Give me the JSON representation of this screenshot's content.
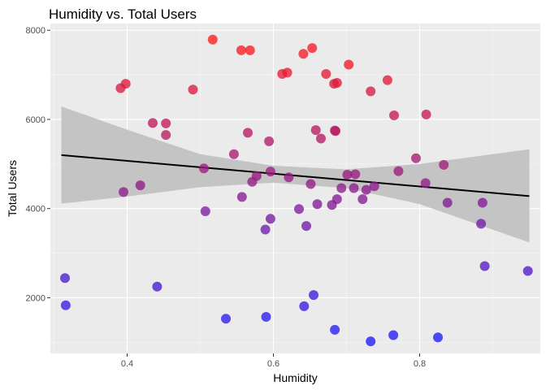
{
  "chart_data": {
    "type": "scatter",
    "title": "Humidity vs. Total Users",
    "xlabel": "Humidity",
    "ylabel": "Total Users",
    "xlim": [
      0.295,
      0.965
    ],
    "ylim": [
      750,
      8150
    ],
    "x_ticks": [
      0.4,
      0.6,
      0.8
    ],
    "x_tick_labels": [
      "0.4",
      "0.6",
      "0.8"
    ],
    "y_ticks": [
      2000,
      4000,
      6000,
      8000
    ],
    "y_tick_labels": [
      "2000",
      "4000",
      "6000",
      "8000"
    ],
    "x_minor": [
      0.3,
      0.5,
      0.7,
      0.9
    ],
    "y_minor": [
      1000,
      3000,
      5000,
      7000
    ],
    "grid": true,
    "legend": "none",
    "color_low": "#1b1bff",
    "color_high": "#ff1b1b",
    "color_range": [
      1000,
      7800
    ],
    "panel_background": "#ebebeb",
    "ribbon_color": "#c4c4c4",
    "trend_color": "#000000",
    "trend": {
      "x": [
        0.31,
        0.95
      ],
      "y": [
        5200,
        4280
      ]
    },
    "ribbon": {
      "x": [
        0.31,
        0.4,
        0.5,
        0.6,
        0.7,
        0.8,
        0.95
      ],
      "upper": [
        6290,
        5770,
        5220,
        4960,
        4880,
        5000,
        5330
      ],
      "lower": [
        4110,
        4270,
        4480,
        4580,
        4460,
        4100,
        3240
      ]
    },
    "points": [
      {
        "x": 0.517,
        "y": 7790
      },
      {
        "x": 0.556,
        "y": 7550
      },
      {
        "x": 0.568,
        "y": 7550
      },
      {
        "x": 0.653,
        "y": 7600
      },
      {
        "x": 0.641,
        "y": 7470
      },
      {
        "x": 0.703,
        "y": 7230
      },
      {
        "x": 0.619,
        "y": 7050
      },
      {
        "x": 0.612,
        "y": 7020
      },
      {
        "x": 0.672,
        "y": 7020
      },
      {
        "x": 0.683,
        "y": 6800
      },
      {
        "x": 0.687,
        "y": 6820
      },
      {
        "x": 0.756,
        "y": 6880
      },
      {
        "x": 0.398,
        "y": 6800
      },
      {
        "x": 0.391,
        "y": 6700
      },
      {
        "x": 0.49,
        "y": 6670
      },
      {
        "x": 0.733,
        "y": 6630
      },
      {
        "x": 0.765,
        "y": 6090
      },
      {
        "x": 0.809,
        "y": 6110
      },
      {
        "x": 0.435,
        "y": 5920
      },
      {
        "x": 0.453,
        "y": 5910
      },
      {
        "x": 0.658,
        "y": 5760
      },
      {
        "x": 0.684,
        "y": 5750
      },
      {
        "x": 0.685,
        "y": 5740
      },
      {
        "x": 0.565,
        "y": 5700
      },
      {
        "x": 0.453,
        "y": 5650
      },
      {
        "x": 0.665,
        "y": 5570
      },
      {
        "x": 0.594,
        "y": 5510
      },
      {
        "x": 0.546,
        "y": 5220
      },
      {
        "x": 0.795,
        "y": 5130
      },
      {
        "x": 0.833,
        "y": 4980
      },
      {
        "x": 0.505,
        "y": 4900
      },
      {
        "x": 0.771,
        "y": 4840
      },
      {
        "x": 0.596,
        "y": 4830
      },
      {
        "x": 0.577,
        "y": 4730
      },
      {
        "x": 0.701,
        "y": 4760
      },
      {
        "x": 0.712,
        "y": 4770
      },
      {
        "x": 0.621,
        "y": 4700
      },
      {
        "x": 0.571,
        "y": 4600
      },
      {
        "x": 0.651,
        "y": 4550
      },
      {
        "x": 0.808,
        "y": 4570
      },
      {
        "x": 0.418,
        "y": 4520
      },
      {
        "x": 0.738,
        "y": 4500
      },
      {
        "x": 0.693,
        "y": 4460
      },
      {
        "x": 0.71,
        "y": 4460
      },
      {
        "x": 0.727,
        "y": 4420
      },
      {
        "x": 0.395,
        "y": 4370
      },
      {
        "x": 0.557,
        "y": 4260
      },
      {
        "x": 0.722,
        "y": 4210
      },
      {
        "x": 0.687,
        "y": 4210
      },
      {
        "x": 0.838,
        "y": 4130
      },
      {
        "x": 0.886,
        "y": 4130
      },
      {
        "x": 0.66,
        "y": 4100
      },
      {
        "x": 0.68,
        "y": 4080
      },
      {
        "x": 0.635,
        "y": 3990
      },
      {
        "x": 0.507,
        "y": 3940
      },
      {
        "x": 0.596,
        "y": 3770
      },
      {
        "x": 0.884,
        "y": 3660
      },
      {
        "x": 0.645,
        "y": 3610
      },
      {
        "x": 0.589,
        "y": 3530
      },
      {
        "x": 0.889,
        "y": 2710
      },
      {
        "x": 0.948,
        "y": 2600
      },
      {
        "x": 0.315,
        "y": 2440
      },
      {
        "x": 0.441,
        "y": 2250
      },
      {
        "x": 0.655,
        "y": 2060
      },
      {
        "x": 0.316,
        "y": 1830
      },
      {
        "x": 0.642,
        "y": 1810
      },
      {
        "x": 0.59,
        "y": 1570
      },
      {
        "x": 0.535,
        "y": 1530
      },
      {
        "x": 0.684,
        "y": 1280
      },
      {
        "x": 0.764,
        "y": 1160
      },
      {
        "x": 0.825,
        "y": 1110
      },
      {
        "x": 0.733,
        "y": 1020
      }
    ]
  }
}
